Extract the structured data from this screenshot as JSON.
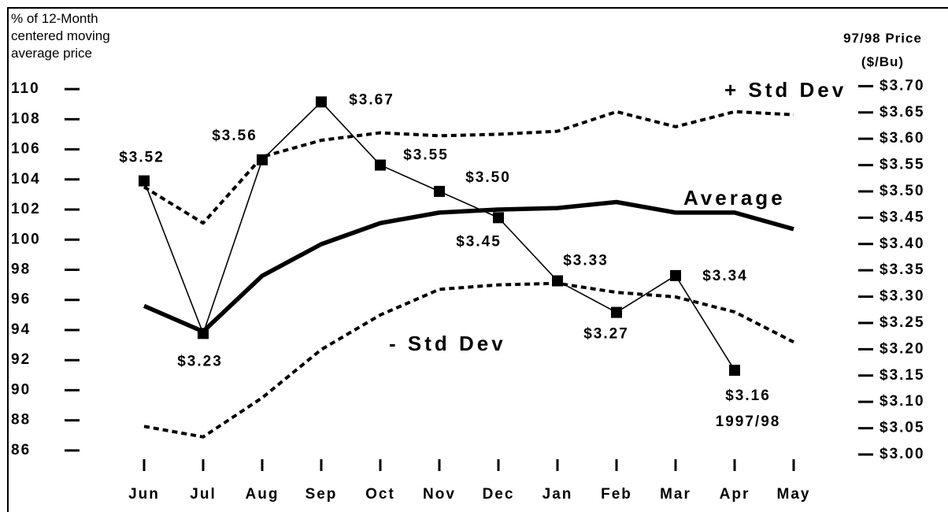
{
  "chart_data": {
    "type": "line",
    "y_label": [
      "% of 12-Month",
      "centered moving",
      "average price"
    ],
    "y2_label": [
      "97/98 Price",
      "($/Bu)"
    ],
    "categories": [
      "Jun",
      "Jul",
      "Aug",
      "Sep",
      "Oct",
      "Nov",
      "Dec",
      "Jan",
      "Feb",
      "Mar",
      "Apr",
      "May"
    ],
    "ylim": [
      85,
      111
    ],
    "yticks": [
      110,
      108,
      106,
      104,
      102,
      100,
      98,
      96,
      94,
      92,
      90,
      88,
      86
    ],
    "y2lim": [
      2.979,
      3.723
    ],
    "y2ticks": [
      {
        "value": 3.7,
        "label": "$3.70"
      },
      {
        "value": 3.65,
        "label": "$3.65"
      },
      {
        "value": 3.6,
        "label": "$3.60"
      },
      {
        "value": 3.55,
        "label": "$3.55"
      },
      {
        "value": 3.5,
        "label": "$3.50"
      },
      {
        "value": 3.45,
        "label": "$3.45"
      },
      {
        "value": 3.4,
        "label": "$3.40"
      },
      {
        "value": 3.35,
        "label": "$3.35"
      },
      {
        "value": 3.3,
        "label": "$3.30"
      },
      {
        "value": 3.25,
        "label": "$3.25"
      },
      {
        "value": 3.2,
        "label": "$3.20"
      },
      {
        "value": 3.15,
        "label": "$3.15"
      },
      {
        "value": 3.1,
        "label": "$3.10"
      },
      {
        "value": 3.05,
        "label": "$3.05"
      },
      {
        "value": 3.0,
        "label": "$3.00"
      }
    ],
    "grid": false,
    "series": [
      {
        "name": "+ Std Dev",
        "color": "#000000",
        "style": "dashed",
        "values": [
          103.5,
          101.1,
          105.5,
          106.6,
          107.1,
          106.9,
          107.0,
          107.2,
          108.5,
          107.5,
          108.5,
          108.3
        ]
      },
      {
        "name": "Average",
        "color": "#000000",
        "style": "thick",
        "values": [
          95.6,
          93.9,
          97.6,
          99.7,
          101.1,
          101.8,
          102.0,
          102.1,
          102.5,
          101.8,
          101.8,
          100.7
        ]
      },
      {
        "name": "- Std Dev",
        "color": "#000000",
        "style": "dashed",
        "values": [
          87.6,
          86.9,
          89.5,
          92.7,
          95.0,
          96.7,
          97.0,
          97.1,
          96.5,
          96.2,
          95.2,
          93.2
        ]
      },
      {
        "name": "1997/98",
        "color": "#000000",
        "style": "markers",
        "axis": "y2",
        "values": [
          3.52,
          3.23,
          3.56,
          3.67,
          3.55,
          3.5,
          3.45,
          3.33,
          3.27,
          3.34,
          3.16,
          null
        ],
        "value_labels": [
          "$3.52",
          "$3.23",
          "$3.56",
          "$3.67",
          "$3.55",
          "$3.50",
          "$3.45",
          "$3.33",
          "$3.27",
          "$3.34",
          "$3.16",
          null
        ]
      }
    ]
  }
}
